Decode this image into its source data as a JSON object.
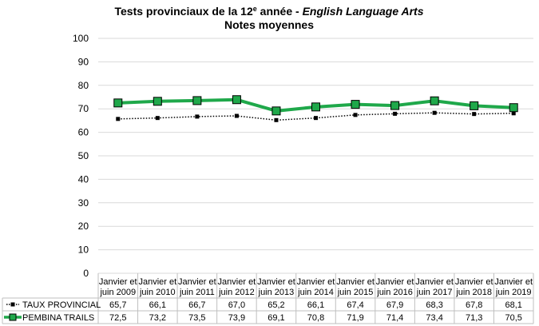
{
  "chart_title": {
    "line1_prefix": "Tests provinciaux de la 12",
    "line1_sup": "e",
    "line1_mid": " année - ",
    "line1_italic": "English Language Arts",
    "line2": "Notes moyennes"
  },
  "chart_data": {
    "type": "line",
    "title": "Tests provinciaux de la 12e année - English Language Arts Notes moyennes",
    "categories": [
      [
        "Janvier et",
        "juin 2009"
      ],
      [
        "Janvier et",
        "juin 2010"
      ],
      [
        "Janvier et",
        "juin 2011"
      ],
      [
        "Janvier et",
        "juin 2012"
      ],
      [
        "Janvier et",
        "juin 2013"
      ],
      [
        "Janvier et",
        "juin 2014"
      ],
      [
        "Janvier et",
        "juin 2015"
      ],
      [
        "Janvier et",
        "juin 2016"
      ],
      [
        "Janvier et",
        "juin 2017"
      ],
      [
        "Janvier et",
        "juin 2018"
      ],
      [
        "Janvier et",
        "juin 2019"
      ]
    ],
    "ylim": [
      0,
      100
    ],
    "yticks": [
      0,
      10,
      20,
      30,
      40,
      50,
      60,
      70,
      80,
      90,
      100
    ],
    "grid": true,
    "legend": "data-table",
    "series": [
      {
        "name": "TAUX PROVINCIAL",
        "values": [
          65.7,
          66.1,
          66.7,
          67.0,
          65.2,
          66.1,
          67.4,
          67.9,
          68.3,
          67.8,
          68.1
        ],
        "labels": [
          "65,7",
          "66,1",
          "66,7",
          "67,0",
          "65,2",
          "66,1",
          "67,4",
          "67,9",
          "68,3",
          "67,8",
          "68,1"
        ],
        "color": "#000000",
        "style": "dotted"
      },
      {
        "name": "PEMBINA TRAILS",
        "values": [
          72.5,
          73.2,
          73.5,
          73.9,
          69.1,
          70.8,
          71.9,
          71.4,
          73.4,
          71.3,
          70.5
        ],
        "labels": [
          "72,5",
          "73,2",
          "73,5",
          "73,9",
          "69,1",
          "70,8",
          "71,9",
          "71,4",
          "73,4",
          "71,3",
          "70,5"
        ],
        "color": "#1fa84a",
        "style": "solid"
      }
    ]
  }
}
